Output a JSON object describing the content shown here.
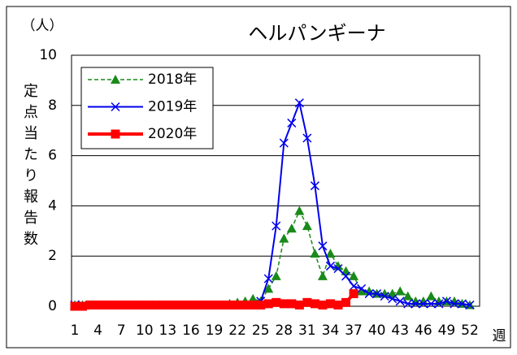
{
  "chart_data": {
    "type": "line",
    "title": "ヘルパンギーナ",
    "unit_label": "（人）",
    "ylabel": "定点当たり報告数",
    "xlabel": "週",
    "categories": [
      "1",
      null,
      null,
      "4",
      null,
      null,
      "7",
      null,
      null,
      "10",
      null,
      null,
      "13",
      null,
      null,
      "16",
      null,
      null,
      "19",
      null,
      null,
      "22",
      null,
      null,
      "25",
      null,
      null,
      "28",
      null,
      null,
      "31",
      null,
      null,
      "34",
      null,
      null,
      "37",
      null,
      null,
      "40",
      null,
      null,
      "43",
      null,
      null,
      "46",
      null,
      null,
      "49",
      null,
      null,
      "52"
    ],
    "ylim": [
      0,
      10
    ],
    "yticks": [
      0,
      2,
      4,
      6,
      8,
      10
    ],
    "grid": true,
    "legend": "upper left",
    "series": [
      {
        "name": "2018年",
        "color": "#1a8a1a",
        "marker": "triangle",
        "dashed": true,
        "values": [
          0.05,
          0.05,
          0.05,
          0.05,
          0.05,
          0.05,
          0.05,
          0.05,
          0.05,
          0.05,
          0.05,
          0.05,
          0.05,
          0.05,
          0.05,
          0.05,
          0.05,
          0.05,
          0.05,
          0.05,
          0.1,
          0.15,
          0.2,
          0.3,
          0.2,
          0.7,
          1.2,
          2.7,
          3.1,
          3.8,
          3.2,
          2.1,
          1.2,
          2.1,
          1.6,
          1.4,
          1.2,
          0.6,
          0.6,
          0.5,
          0.5,
          0.5,
          0.6,
          0.4,
          0.2,
          0.2,
          0.4,
          0.2,
          0.2,
          0.2,
          0.1,
          0.05
        ]
      },
      {
        "name": "2019年",
        "color": "#0000ee",
        "marker": "cross",
        "dashed": false,
        "values": [
          0.05,
          0.05,
          0.05,
          0.05,
          0.05,
          0.05,
          0.05,
          0.05,
          0.05,
          0.05,
          0.05,
          0.05,
          0.05,
          0.05,
          0.05,
          0.05,
          0.05,
          0.05,
          0.05,
          0.05,
          0.05,
          0.05,
          0.05,
          0.05,
          0.2,
          1.1,
          3.2,
          6.5,
          7.3,
          8.1,
          6.7,
          4.8,
          2.4,
          1.6,
          1.5,
          1.2,
          0.8,
          0.7,
          0.5,
          0.5,
          0.4,
          0.3,
          0.2,
          0.1,
          0.1,
          0.1,
          0.1,
          0.1,
          0.2,
          0.1,
          0.1,
          0.05
        ]
      },
      {
        "name": "2020年",
        "color": "#ff0000",
        "marker": "square",
        "dashed": false,
        "values": [
          0,
          0,
          0.05,
          0.05,
          0.05,
          0.05,
          0.05,
          0.05,
          0.05,
          0.05,
          0.05,
          0.05,
          0.05,
          0.05,
          0.05,
          0.05,
          0.05,
          0.05,
          0.05,
          0.05,
          0.05,
          0.05,
          0.05,
          0.05,
          0.05,
          0.1,
          0.15,
          0.1,
          0.1,
          0.05,
          0.15,
          0.1,
          0.05,
          0.1,
          0.05,
          0.15,
          0.5,
          null,
          null,
          null,
          null,
          null,
          null,
          null,
          null,
          null,
          null,
          null,
          null,
          null,
          null,
          null
        ]
      }
    ]
  }
}
